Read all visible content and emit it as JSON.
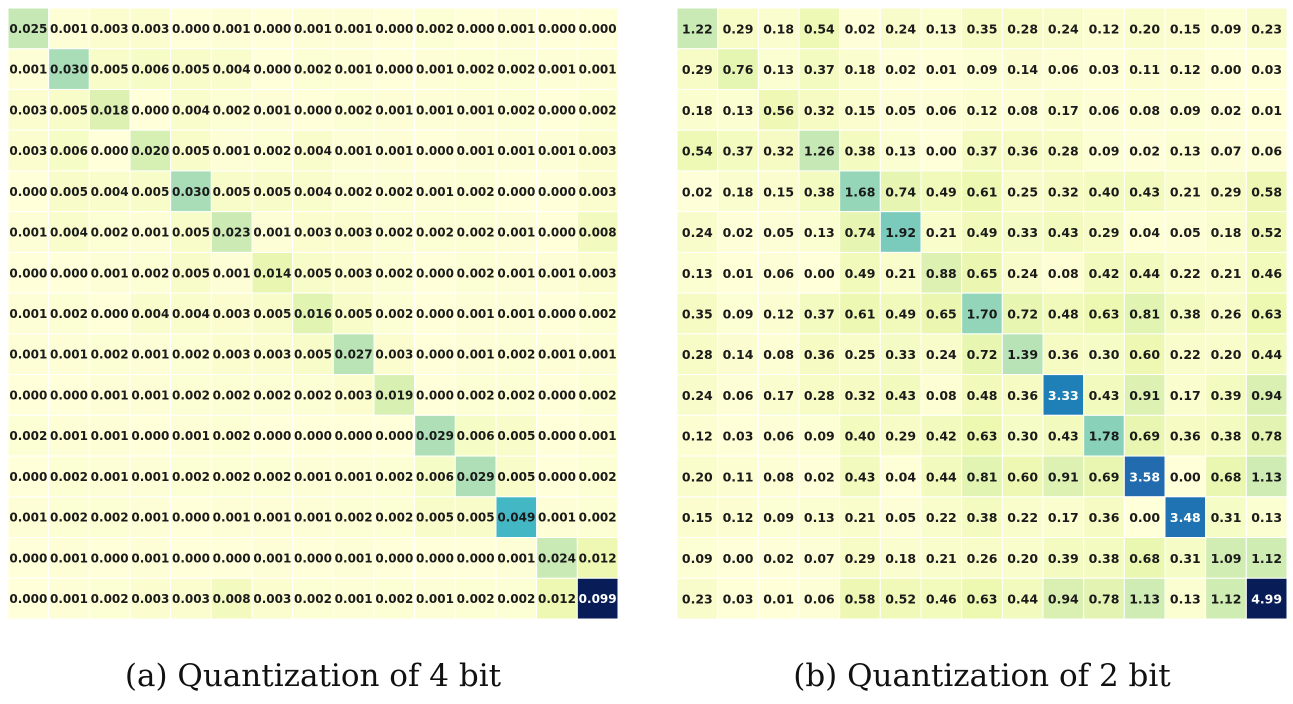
{
  "chart_data": [
    {
      "type": "heatmap",
      "caption": "(a) Quantization of 4 bit",
      "colormap": "YlGnBu",
      "values": [
        [
          "0.025",
          "0.001",
          "0.003",
          "0.003",
          "0.000",
          "0.001",
          "0.000",
          "0.001",
          "0.001",
          "0.000",
          "0.002",
          "0.000",
          "0.001",
          "0.000",
          "0.000"
        ],
        [
          "0.001",
          "0.030",
          "0.005",
          "0.006",
          "0.005",
          "0.004",
          "0.000",
          "0.002",
          "0.001",
          "0.000",
          "0.001",
          "0.002",
          "0.002",
          "0.001",
          "0.001"
        ],
        [
          "0.003",
          "0.005",
          "0.018",
          "0.000",
          "0.004",
          "0.002",
          "0.001",
          "0.000",
          "0.002",
          "0.001",
          "0.001",
          "0.001",
          "0.002",
          "0.000",
          "0.002"
        ],
        [
          "0.003",
          "0.006",
          "0.000",
          "0.020",
          "0.005",
          "0.001",
          "0.002",
          "0.004",
          "0.001",
          "0.001",
          "0.000",
          "0.001",
          "0.001",
          "0.001",
          "0.003"
        ],
        [
          "0.000",
          "0.005",
          "0.004",
          "0.005",
          "0.030",
          "0.005",
          "0.005",
          "0.004",
          "0.002",
          "0.002",
          "0.001",
          "0.002",
          "0.000",
          "0.000",
          "0.003"
        ],
        [
          "0.001",
          "0.004",
          "0.002",
          "0.001",
          "0.005",
          "0.023",
          "0.001",
          "0.003",
          "0.003",
          "0.002",
          "0.002",
          "0.002",
          "0.001",
          "0.000",
          "0.008"
        ],
        [
          "0.000",
          "0.000",
          "0.001",
          "0.002",
          "0.005",
          "0.001",
          "0.014",
          "0.005",
          "0.003",
          "0.002",
          "0.000",
          "0.002",
          "0.001",
          "0.001",
          "0.003"
        ],
        [
          "0.001",
          "0.002",
          "0.000",
          "0.004",
          "0.004",
          "0.003",
          "0.005",
          "0.016",
          "0.005",
          "0.002",
          "0.000",
          "0.001",
          "0.001",
          "0.000",
          "0.002"
        ],
        [
          "0.001",
          "0.001",
          "0.002",
          "0.001",
          "0.002",
          "0.003",
          "0.003",
          "0.005",
          "0.027",
          "0.003",
          "0.000",
          "0.001",
          "0.002",
          "0.001",
          "0.001"
        ],
        [
          "0.000",
          "0.000",
          "0.001",
          "0.001",
          "0.002",
          "0.002",
          "0.002",
          "0.002",
          "0.003",
          "0.019",
          "0.000",
          "0.002",
          "0.002",
          "0.000",
          "0.002"
        ],
        [
          "0.002",
          "0.001",
          "0.001",
          "0.000",
          "0.001",
          "0.002",
          "0.000",
          "0.000",
          "0.000",
          "0.000",
          "0.029",
          "0.006",
          "0.005",
          "0.000",
          "0.001"
        ],
        [
          "0.000",
          "0.002",
          "0.001",
          "0.001",
          "0.002",
          "0.002",
          "0.002",
          "0.001",
          "0.001",
          "0.002",
          "0.006",
          "0.029",
          "0.005",
          "0.000",
          "0.002"
        ],
        [
          "0.001",
          "0.002",
          "0.002",
          "0.001",
          "0.000",
          "0.001",
          "0.001",
          "0.001",
          "0.002",
          "0.002",
          "0.005",
          "0.005",
          "0.049",
          "0.001",
          "0.002"
        ],
        [
          "0.000",
          "0.001",
          "0.000",
          "0.001",
          "0.000",
          "0.000",
          "0.001",
          "0.000",
          "0.001",
          "0.000",
          "0.000",
          "0.000",
          "0.001",
          "0.024",
          "0.012"
        ],
        [
          "0.000",
          "0.001",
          "0.002",
          "0.003",
          "0.003",
          "0.008",
          "0.003",
          "0.002",
          "0.001",
          "0.002",
          "0.001",
          "0.002",
          "0.002",
          "0.012",
          "0.099"
        ]
      ]
    },
    {
      "type": "heatmap",
      "caption": "(b) Quantization of 2 bit",
      "colormap": "YlGnBu",
      "values": [
        [
          "1.22",
          "0.29",
          "0.18",
          "0.54",
          "0.02",
          "0.24",
          "0.13",
          "0.35",
          "0.28",
          "0.24",
          "0.12",
          "0.20",
          "0.15",
          "0.09",
          "0.23"
        ],
        [
          "0.29",
          "0.76",
          "0.13",
          "0.37",
          "0.18",
          "0.02",
          "0.01",
          "0.09",
          "0.14",
          "0.06",
          "0.03",
          "0.11",
          "0.12",
          "0.00",
          "0.03"
        ],
        [
          "0.18",
          "0.13",
          "0.56",
          "0.32",
          "0.15",
          "0.05",
          "0.06",
          "0.12",
          "0.08",
          "0.17",
          "0.06",
          "0.08",
          "0.09",
          "0.02",
          "0.01"
        ],
        [
          "0.54",
          "0.37",
          "0.32",
          "1.26",
          "0.38",
          "0.13",
          "0.00",
          "0.37",
          "0.36",
          "0.28",
          "0.09",
          "0.02",
          "0.13",
          "0.07",
          "0.06"
        ],
        [
          "0.02",
          "0.18",
          "0.15",
          "0.38",
          "1.68",
          "0.74",
          "0.49",
          "0.61",
          "0.25",
          "0.32",
          "0.40",
          "0.43",
          "0.21",
          "0.29",
          "0.58"
        ],
        [
          "0.24",
          "0.02",
          "0.05",
          "0.13",
          "0.74",
          "1.92",
          "0.21",
          "0.49",
          "0.33",
          "0.43",
          "0.29",
          "0.04",
          "0.05",
          "0.18",
          "0.52"
        ],
        [
          "0.13",
          "0.01",
          "0.06",
          "0.00",
          "0.49",
          "0.21",
          "0.88",
          "0.65",
          "0.24",
          "0.08",
          "0.42",
          "0.44",
          "0.22",
          "0.21",
          "0.46"
        ],
        [
          "0.35",
          "0.09",
          "0.12",
          "0.37",
          "0.61",
          "0.49",
          "0.65",
          "1.70",
          "0.72",
          "0.48",
          "0.63",
          "0.81",
          "0.38",
          "0.26",
          "0.63"
        ],
        [
          "0.28",
          "0.14",
          "0.08",
          "0.36",
          "0.25",
          "0.33",
          "0.24",
          "0.72",
          "1.39",
          "0.36",
          "0.30",
          "0.60",
          "0.22",
          "0.20",
          "0.44"
        ],
        [
          "0.24",
          "0.06",
          "0.17",
          "0.28",
          "0.32",
          "0.43",
          "0.08",
          "0.48",
          "0.36",
          "3.33",
          "0.43",
          "0.91",
          "0.17",
          "0.39",
          "0.94"
        ],
        [
          "0.12",
          "0.03",
          "0.06",
          "0.09",
          "0.40",
          "0.29",
          "0.42",
          "0.63",
          "0.30",
          "0.43",
          "1.78",
          "0.69",
          "0.36",
          "0.38",
          "0.78"
        ],
        [
          "0.20",
          "0.11",
          "0.08",
          "0.02",
          "0.43",
          "0.04",
          "0.44",
          "0.81",
          "0.60",
          "0.91",
          "0.69",
          "3.58",
          "0.00",
          "0.68",
          "1.13"
        ],
        [
          "0.15",
          "0.12",
          "0.09",
          "0.13",
          "0.21",
          "0.05",
          "0.22",
          "0.38",
          "0.22",
          "0.17",
          "0.36",
          "0.00",
          "3.48",
          "0.31",
          "0.13"
        ],
        [
          "0.09",
          "0.00",
          "0.02",
          "0.07",
          "0.29",
          "0.18",
          "0.21",
          "0.26",
          "0.20",
          "0.39",
          "0.38",
          "0.68",
          "0.31",
          "1.09",
          "1.12"
        ],
        [
          "0.23",
          "0.03",
          "0.01",
          "0.06",
          "0.58",
          "0.52",
          "0.46",
          "0.63",
          "0.44",
          "0.94",
          "0.78",
          "1.13",
          "0.13",
          "1.12",
          "4.99"
        ]
      ]
    }
  ]
}
